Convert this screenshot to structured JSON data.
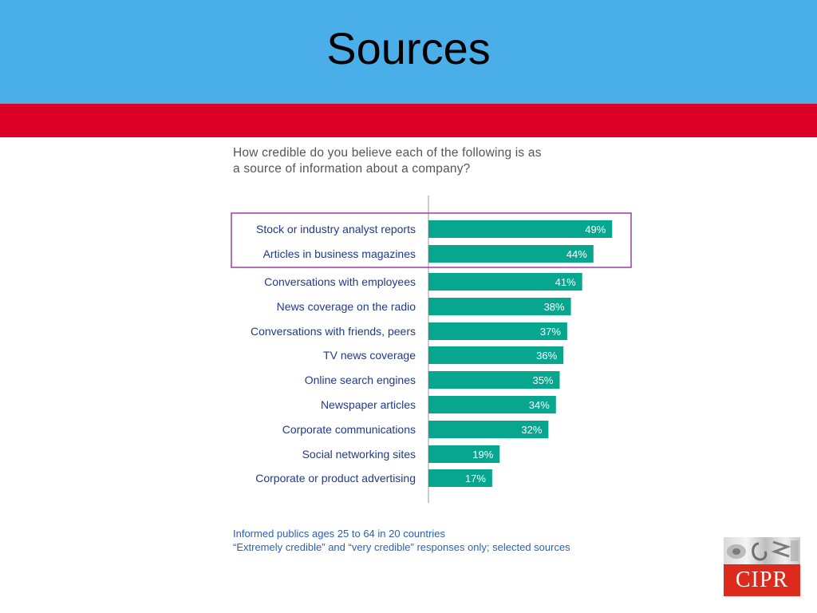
{
  "slide": {
    "title": "Sources",
    "question_lines": [
      "How credible do you believe each of the following is as",
      "a source of information about a company?"
    ],
    "footnote_lines": [
      "Informed publics ages 25 to 64 in 20 countries",
      "“Extremely credible” and “very credible” responses only; selected sources"
    ],
    "logo_text": "CIPR",
    "colors": {
      "title_band": "#4aaee8",
      "red_band": "#dc0028",
      "bar": "#07a68f",
      "highlight_box": "#9c3ca6",
      "footnote": "#2a5fb5"
    }
  },
  "chart_data": {
    "type": "bar",
    "orientation": "horizontal",
    "categories": [
      "Stock or industry analyst reports",
      "Articles in business magazines",
      "Conversations with employees",
      "News coverage on the radio",
      "Conversations with friends, peers",
      "TV news coverage",
      "Online search engines",
      "Newspaper articles",
      "Corporate communications",
      "Social networking sites",
      "Corporate or product advertising"
    ],
    "values": [
      49,
      44,
      41,
      38,
      37,
      36,
      35,
      34,
      32,
      19,
      17
    ],
    "value_labels": [
      "49%",
      "44%",
      "41%",
      "38%",
      "37%",
      "36%",
      "35%",
      "34%",
      "32%",
      "19%",
      "17%"
    ],
    "unit": "%",
    "highlighted_categories": [
      0,
      1
    ],
    "grid": false,
    "legend": "none"
  }
}
